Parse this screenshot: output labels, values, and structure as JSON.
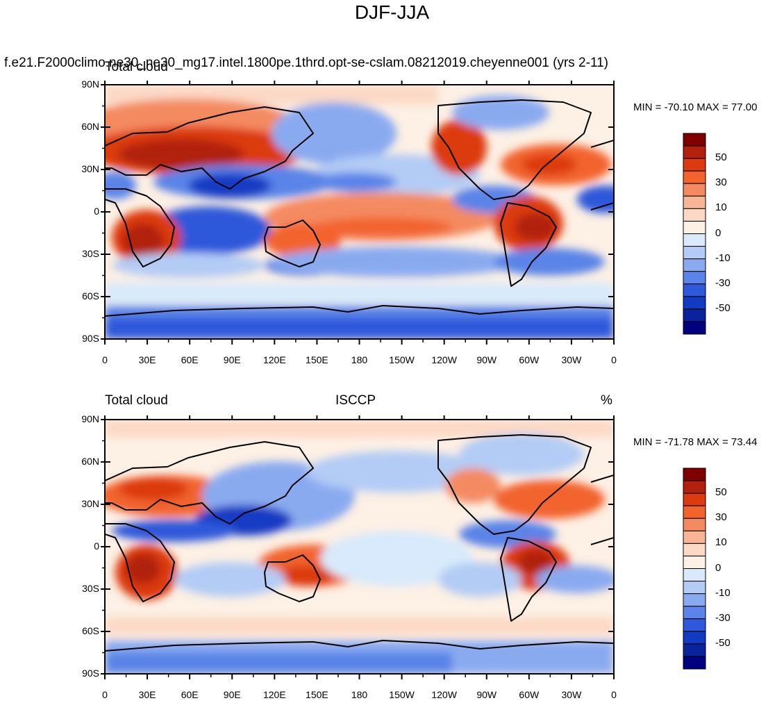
{
  "figure": {
    "title": "DJF-JJA"
  },
  "panels": [
    {
      "case_title": "f.e21.F2000climo.ne30_ne30_mg17.intel.1800pe.1thrd.opt-se-cslam.08212019.cheyenne001 (yrs 2-11)",
      "left_string": "Total cloud",
      "center_string": "",
      "right_string": "",
      "min_max": "MIN = -70.10 MAX =  77.00"
    },
    {
      "case_title": "",
      "left_string": "Total cloud",
      "center_string": "ISCCP",
      "right_string": "%",
      "min_max": "MIN = -71.78 MAX =  73.44"
    }
  ],
  "axes": {
    "lat_ticks": [
      "90N",
      "60N",
      "30N",
      "0",
      "30S",
      "60S",
      "90S"
    ],
    "lon_ticks": [
      "0",
      "30E",
      "60E",
      "90E",
      "120E",
      "150E",
      "180",
      "150W",
      "120W",
      "90W",
      "60W",
      "30W",
      "0"
    ]
  },
  "colorbar": {
    "labels": [
      "50",
      "30",
      "10",
      "0",
      "-10",
      "-30",
      "-50"
    ],
    "colors": [
      "#800000",
      "#b1210c",
      "#dc3a10",
      "#f2632d",
      "#f48a60",
      "#f7b595",
      "#fbd9c6",
      "#fdf0e4",
      "#d8eafb",
      "#b3ccf5",
      "#8aaaf0",
      "#5a84e8",
      "#2d59da",
      "#123bc4",
      "#08239b",
      "#000080"
    ]
  }
}
